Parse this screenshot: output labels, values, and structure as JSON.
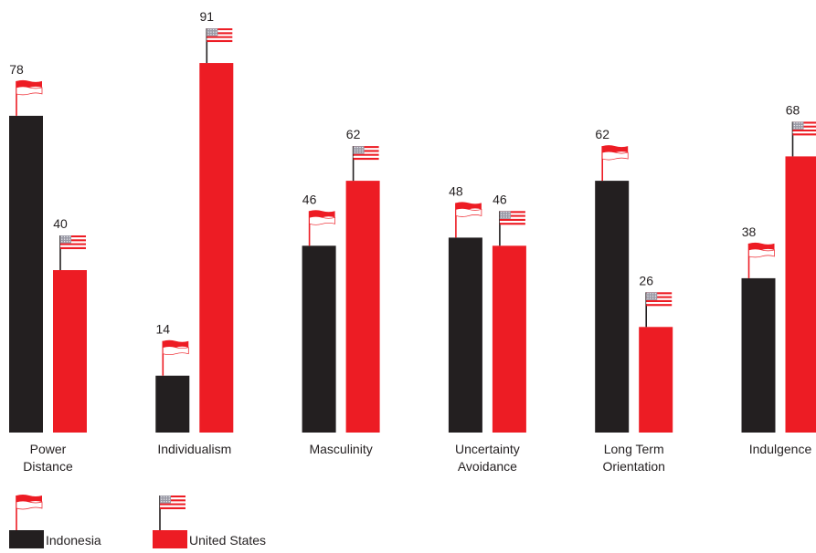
{
  "colors": {
    "indonesia": "#231f20",
    "united_states": "#ed1c24",
    "flag_red": "#ed1c24",
    "flag_white": "#ffffff",
    "flag_canton": "#9a9aa6",
    "pole": "#231f20",
    "text": "#231f20"
  },
  "chart_data": {
    "type": "bar",
    "title": "",
    "xlabel": "",
    "ylabel": "",
    "ylim": [
      0,
      100
    ],
    "grid": false,
    "legend": "bottom-left",
    "categories": [
      [
        "Power",
        "Distance"
      ],
      [
        "Individualism"
      ],
      [
        "Masculinity"
      ],
      [
        "Uncertainty",
        "Avoidance"
      ],
      [
        "Long Term",
        "Orientation"
      ],
      [
        "Indulgence"
      ]
    ],
    "series": [
      {
        "name": "Indonesia",
        "flag": "indonesia-flag-icon",
        "values": [
          78,
          14,
          46,
          48,
          62,
          38
        ]
      },
      {
        "name": "United States",
        "flag": "us-flag-icon",
        "values": [
          40,
          91,
          62,
          46,
          26,
          68
        ]
      }
    ]
  }
}
